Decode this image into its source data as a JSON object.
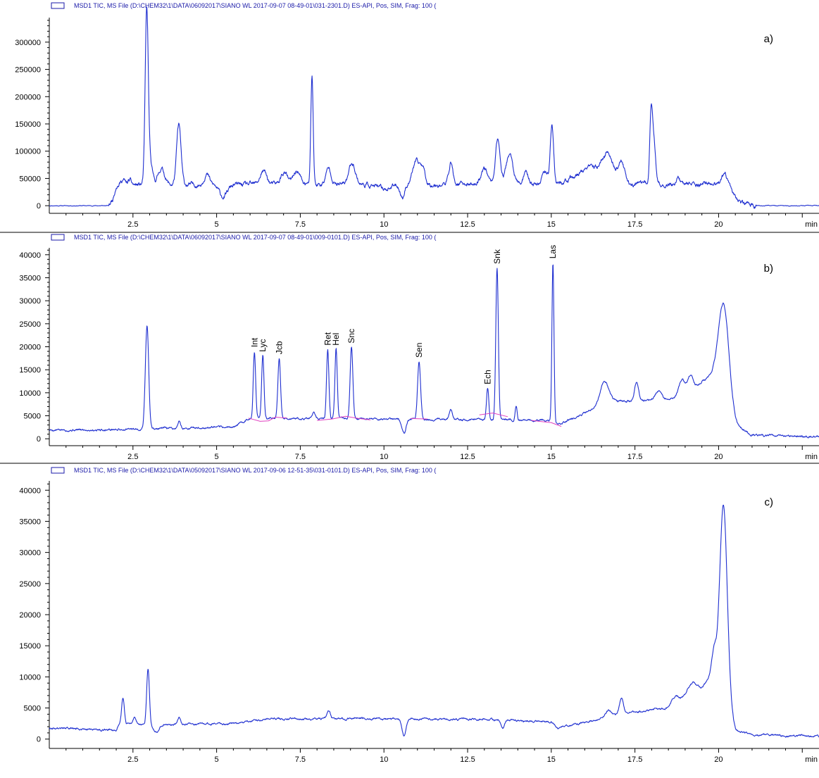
{
  "colors": {
    "trace": "#1f2fd0",
    "baseline": "#e040c0",
    "text": "#000000",
    "header_text": "#1a1aa8"
  },
  "chart_data": [
    {
      "type": "line",
      "header": "MSD1 TIC, MS File (D:\\CHEM32\\1\\DATA\\06092017\\SIANO WL 2017-09-07 08-49-01\\031-2301.D)    ES-API, Pos, SIM, Frag: 100 (",
      "panel_label": "a)",
      "xlabel": "min",
      "xlim": [
        0,
        23
      ],
      "ylim": [
        -14000,
        345000
      ],
      "xticks": [
        2.5,
        5,
        7.5,
        10,
        12.5,
        15,
        17.5,
        20
      ],
      "xtick_labels": [
        "2.5",
        "5",
        "7.5",
        "10",
        "12.5",
        "15",
        "17.5",
        "20"
      ],
      "yticks": [
        0,
        50000,
        100000,
        150000,
        200000,
        250000,
        300000
      ],
      "ytick_labels": [
        "0",
        "50000",
        "100000",
        "150000",
        "200000",
        "250000",
        "300000"
      ],
      "baseline": 0,
      "level": 42000,
      "plateau": [
        [
          0,
          0
        ],
        [
          1.78,
          0
        ],
        [
          1.9,
          12000
        ],
        [
          2.0,
          38000
        ],
        [
          19.85,
          40000
        ],
        [
          20.3,
          30000
        ],
        [
          20.7,
          5000
        ],
        [
          21.2,
          0
        ],
        [
          23,
          0
        ]
      ],
      "wiggle": 9000,
      "seed": 11,
      "dips": [
        [
          10.55,
          0.06,
          -24000
        ],
        [
          5.2,
          0.12,
          -22000
        ],
        [
          10.0,
          0.2,
          -8000
        ]
      ],
      "peaks": [
        [
          2.2,
          0.06,
          10000
        ],
        [
          2.4,
          0.05,
          8000
        ],
        [
          2.91,
          0.045,
          290000
        ],
        [
          2.98,
          0.08,
          50000
        ],
        [
          3.35,
          0.1,
          30000
        ],
        [
          3.87,
          0.065,
          110000
        ],
        [
          4.7,
          0.08,
          20000
        ],
        [
          6.4,
          0.1,
          25000
        ],
        [
          7.02,
          0.1,
          22000
        ],
        [
          7.4,
          0.1,
          25000
        ],
        [
          7.85,
          0.035,
          200000
        ],
        [
          8.35,
          0.08,
          30000
        ],
        [
          9.05,
          0.1,
          40000
        ],
        [
          10.95,
          0.1,
          40000
        ],
        [
          11.15,
          0.08,
          30000
        ],
        [
          12.0,
          0.06,
          40000
        ],
        [
          13.0,
          0.1,
          30000
        ],
        [
          13.4,
          0.07,
          85000
        ],
        [
          13.75,
          0.1,
          55000
        ],
        [
          14.25,
          0.08,
          20000
        ],
        [
          14.8,
          0.08,
          25000
        ],
        [
          15.02,
          0.05,
          110000
        ],
        [
          16.2,
          0.4,
          30000
        ],
        [
          16.7,
          0.15,
          45000
        ],
        [
          17.1,
          0.1,
          35000
        ],
        [
          17.98,
          0.04,
          120000
        ],
        [
          18.06,
          0.05,
          80000
        ],
        [
          18.8,
          0.05,
          12000
        ],
        [
          20.18,
          0.1,
          22000
        ]
      ],
      "annotations": []
    },
    {
      "type": "line",
      "header": "MSD1 TIC, MS File (D:\\CHEM32\\1\\DATA\\06092017\\SIANO WL 2017-09-07 08-49-01\\009-0101.D)    ES-API, Pos, SIM, Frag: 100 (",
      "panel_label": "b)",
      "xlabel": "min",
      "xlim": [
        0,
        23
      ],
      "ylim": [
        -1500,
        41500
      ],
      "xticks": [
        2.5,
        5,
        7.5,
        10,
        12.5,
        15,
        17.5,
        20
      ],
      "xtick_labels": [
        "2.5",
        "5",
        "7.5",
        "10",
        "12.5",
        "15",
        "17.5",
        "20"
      ],
      "yticks": [
        0,
        5000,
        10000,
        15000,
        20000,
        25000,
        30000,
        35000,
        40000
      ],
      "ytick_labels": [
        "0",
        "5000",
        "10000",
        "15000",
        "20000",
        "25000",
        "30000",
        "35000",
        "40000"
      ],
      "baseline": 0,
      "level": 0,
      "plateau": [
        [
          0,
          1900
        ],
        [
          2.0,
          2000
        ],
        [
          5.5,
          2500
        ],
        [
          6.0,
          4500
        ],
        [
          15.0,
          4000
        ],
        [
          15.2,
          3000
        ],
        [
          16.0,
          5500
        ],
        [
          16.5,
          8000
        ],
        [
          18.5,
          8500
        ],
        [
          19.5,
          12000
        ],
        [
          20.5,
          3000
        ],
        [
          21.0,
          800
        ],
        [
          23,
          500
        ]
      ],
      "wiggle": 500,
      "seed": 5,
      "dips": [
        [
          10.6,
          0.06,
          -3000
        ]
      ],
      "peaks": [
        [
          2.92,
          0.05,
          22500
        ],
        [
          3.88,
          0.04,
          1500
        ],
        [
          6.13,
          0.035,
          14500
        ],
        [
          6.38,
          0.035,
          13500
        ],
        [
          6.87,
          0.04,
          13000
        ],
        [
          7.9,
          0.05,
          1500
        ],
        [
          8.32,
          0.035,
          15000
        ],
        [
          8.57,
          0.035,
          15000
        ],
        [
          9.03,
          0.04,
          15500
        ],
        [
          11.05,
          0.045,
          12500
        ],
        [
          12.0,
          0.05,
          2000
        ],
        [
          13.1,
          0.035,
          6800
        ],
        [
          13.38,
          0.038,
          33000
        ],
        [
          13.95,
          0.03,
          3000
        ],
        [
          15.05,
          0.03,
          34500
        ],
        [
          16.6,
          0.12,
          4500
        ],
        [
          17.55,
          0.06,
          4000
        ],
        [
          18.2,
          0.1,
          2000
        ],
        [
          18.9,
          0.08,
          3000
        ],
        [
          19.15,
          0.08,
          3000
        ],
        [
          19.8,
          0.15,
          3500
        ],
        [
          20.15,
          0.16,
          23000
        ]
      ],
      "annotations": [
        {
          "label": "Int",
          "x": 6.13
        },
        {
          "label": "Lyc",
          "x": 6.38
        },
        {
          "label": "Jcb",
          "x": 6.87
        },
        {
          "label": "Ret",
          "x": 8.32
        },
        {
          "label": "Hel",
          "x": 8.57
        },
        {
          "label": "Snc",
          "x": 9.03
        },
        {
          "label": "Sen",
          "x": 11.05
        },
        {
          "label": "Ech",
          "x": 13.1
        },
        {
          "label": "Snk",
          "x": 13.38
        },
        {
          "label": "Las",
          "x": 15.05
        }
      ],
      "integration_baselines": [
        [
          [
            5.95,
            4500
          ],
          [
            6.3,
            3800
          ],
          [
            6.55,
            3900
          ],
          [
            6.75,
            4700
          ],
          [
            7.1,
            4500
          ]
        ],
        [
          [
            8.0,
            4000
          ],
          [
            8.45,
            4300
          ],
          [
            8.85,
            4900
          ],
          [
            9.25,
            4400
          ],
          [
            9.6,
            4100
          ]
        ],
        [
          [
            10.8,
            4400
          ],
          [
            11.3,
            4300
          ]
        ],
        [
          [
            12.85,
            5200
          ],
          [
            13.25,
            5600
          ],
          [
            13.7,
            4800
          ]
        ],
        [
          [
            14.4,
            4000
          ],
          [
            15.0,
            3500
          ],
          [
            15.3,
            2700
          ]
        ]
      ]
    },
    {
      "type": "line",
      "header": "MSD1 TIC, MS File (D:\\CHEM32\\1\\DATA\\05092017\\SIANO WL 2017-09-06 12-51-35\\031-0101.D)    ES-API, Pos, SIM, Frag: 100 (",
      "panel_label": "c)",
      "xlabel": "min",
      "xlim": [
        0,
        23
      ],
      "ylim": [
        -1500,
        41500
      ],
      "xticks": [
        2.5,
        5,
        7.5,
        10,
        12.5,
        15,
        17.5,
        20
      ],
      "xtick_labels": [
        "2.5",
        "5",
        "7.5",
        "10",
        "12.5",
        "15",
        "17.5",
        "20"
      ],
      "yticks": [
        0,
        5000,
        10000,
        15000,
        20000,
        25000,
        30000,
        35000,
        40000
      ],
      "ytick_labels": [
        "0",
        "5000",
        "10000",
        "15000",
        "20000",
        "25000",
        "30000",
        "35000",
        "40000"
      ],
      "baseline": 0,
      "level": 0,
      "plateau": [
        [
          0,
          1800
        ],
        [
          2.0,
          1500
        ],
        [
          2.1,
          2500
        ],
        [
          3.0,
          2300
        ],
        [
          5.5,
          2500
        ],
        [
          6.5,
          3200
        ],
        [
          10.0,
          3300
        ],
        [
          13.5,
          3100
        ],
        [
          15.0,
          2700
        ],
        [
          15.2,
          1800
        ],
        [
          16.0,
          2700
        ],
        [
          17.0,
          4000
        ],
        [
          18.5,
          5000
        ],
        [
          19.5,
          8000
        ],
        [
          19.9,
          11500
        ],
        [
          20.5,
          1500
        ],
        [
          21.0,
          700
        ],
        [
          23,
          400
        ]
      ],
      "wiggle": 350,
      "seed": 9,
      "dips": [
        [
          10.6,
          0.06,
          -2500
        ],
        [
          13.55,
          0.05,
          -1500
        ],
        [
          3.2,
          0.08,
          -1200
        ]
      ],
      "peaks": [
        [
          2.2,
          0.04,
          4200
        ],
        [
          2.55,
          0.05,
          1000
        ],
        [
          2.95,
          0.04,
          9000
        ],
        [
          3.87,
          0.04,
          1200
        ],
        [
          8.35,
          0.05,
          1300
        ],
        [
          16.7,
          0.1,
          1000
        ],
        [
          17.1,
          0.06,
          2500
        ],
        [
          18.7,
          0.1,
          1200
        ],
        [
          19.2,
          0.15,
          2000
        ],
        [
          19.85,
          0.06,
          3000
        ],
        [
          20.15,
          0.11,
          30000
        ]
      ],
      "annotations": []
    }
  ]
}
